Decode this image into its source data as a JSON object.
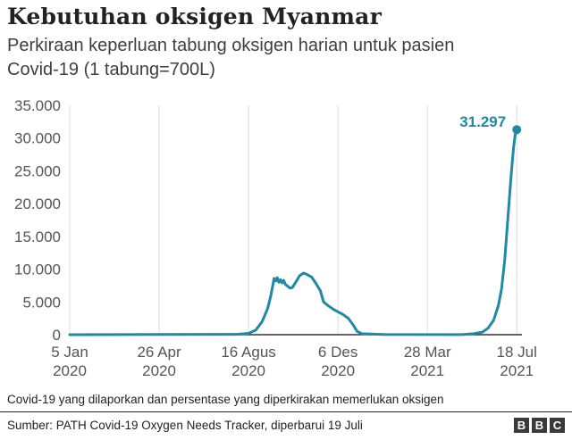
{
  "header": {
    "title": "Kebutuhan oksigen Myanmar",
    "subtitle": "Perkiraan keperluan tabung oksigen harian untuk pasien Covid-19 (1 tabung=700L)"
  },
  "chart_data": {
    "type": "line",
    "title": "Kebutuhan oksigen Myanmar",
    "subtitle": "Perkiraan keperluan tabung oksigen harian untuk pasien Covid-19 (1 tabung=700L)",
    "xlabel": "",
    "ylabel": "",
    "xlim": [
      "2020-01-05",
      "2021-07-20"
    ],
    "ylim": [
      0,
      35000
    ],
    "grid": "vertical",
    "y_ticks": [
      {
        "value": 0,
        "label": "0"
      },
      {
        "value": 5000,
        "label": "5.000"
      },
      {
        "value": 10000,
        "label": "10.000"
      },
      {
        "value": 15000,
        "label": "15.000"
      },
      {
        "value": 20000,
        "label": "20.000"
      },
      {
        "value": 25000,
        "label": "25.000"
      },
      {
        "value": 30000,
        "label": "30.000"
      },
      {
        "value": 35000,
        "label": "35.000"
      }
    ],
    "x_ticks": [
      {
        "value": "2020-01-05",
        "label": "5 Jan",
        "label2": "2020"
      },
      {
        "value": "2020-04-26",
        "label": "26 Apr",
        "label2": "2020"
      },
      {
        "value": "2020-08-16",
        "label": "16 Agus",
        "label2": "2020"
      },
      {
        "value": "2020-12-06",
        "label": "6 Des",
        "label2": "2020"
      },
      {
        "value": "2021-03-28",
        "label": "28 Mar",
        "label2": "2021"
      },
      {
        "value": "2021-07-18",
        "label": "18 Jul",
        "label2": "2021"
      }
    ],
    "series": [
      {
        "color": "#1f8aa4",
        "points": [
          [
            "2020-01-05",
            0
          ],
          [
            "2020-04-26",
            30
          ],
          [
            "2020-08-01",
            50
          ],
          [
            "2020-08-16",
            200
          ],
          [
            "2020-08-25",
            700
          ],
          [
            "2020-09-02",
            2000
          ],
          [
            "2020-09-09",
            4000
          ],
          [
            "2020-09-13",
            6000
          ],
          [
            "2020-09-17",
            8600
          ],
          [
            "2020-09-19",
            8200
          ],
          [
            "2020-09-21",
            8700
          ],
          [
            "2020-09-23",
            8000
          ],
          [
            "2020-09-25",
            8400
          ],
          [
            "2020-09-27",
            7900
          ],
          [
            "2020-09-29",
            8300
          ],
          [
            "2020-10-01",
            7700
          ],
          [
            "2020-10-04",
            7400
          ],
          [
            "2020-10-07",
            7100
          ],
          [
            "2020-10-10",
            7200
          ],
          [
            "2020-10-14",
            8000
          ],
          [
            "2020-10-19",
            9000
          ],
          [
            "2020-10-24",
            9400
          ],
          [
            "2020-10-28",
            9200
          ],
          [
            "2020-11-03",
            8800
          ],
          [
            "2020-11-08",
            7900
          ],
          [
            "2020-11-14",
            6700
          ],
          [
            "2020-11-18",
            5000
          ],
          [
            "2020-11-24",
            4400
          ],
          [
            "2020-11-30",
            3900
          ],
          [
            "2020-12-06",
            3500
          ],
          [
            "2020-12-12",
            3100
          ],
          [
            "2020-12-19",
            2500
          ],
          [
            "2020-12-25",
            1500
          ],
          [
            "2020-12-30",
            500
          ],
          [
            "2021-01-05",
            150
          ],
          [
            "2021-02-01",
            30
          ],
          [
            "2021-05-10",
            20
          ],
          [
            "2021-05-25",
            150
          ],
          [
            "2021-06-05",
            400
          ],
          [
            "2021-06-12",
            1000
          ],
          [
            "2021-06-19",
            2200
          ],
          [
            "2021-06-25",
            4500
          ],
          [
            "2021-06-29",
            7000
          ],
          [
            "2021-07-03",
            11500
          ],
          [
            "2021-07-07",
            18000
          ],
          [
            "2021-07-11",
            24500
          ],
          [
            "2021-07-14",
            28500
          ],
          [
            "2021-07-16",
            30500
          ],
          [
            "2021-07-18",
            31297
          ]
        ]
      }
    ],
    "annotations": [
      {
        "x": "2021-07-18",
        "y": 31297,
        "label": "31.297"
      }
    ],
    "note": "Covid-19 yang dilaporkan dan persentase yang diperkirakan memerlukan oksigen"
  },
  "footer": {
    "source": "Sumber: PATH Covid-19 Oxygen Needs Tracker, diperbarui 19 Juli",
    "logo_letters": [
      "B",
      "B",
      "C"
    ]
  },
  "colors": {
    "line": "#1f8aa4",
    "grid": "#dddddd",
    "axis": "#333333",
    "annotation": "#1f8aa4"
  }
}
